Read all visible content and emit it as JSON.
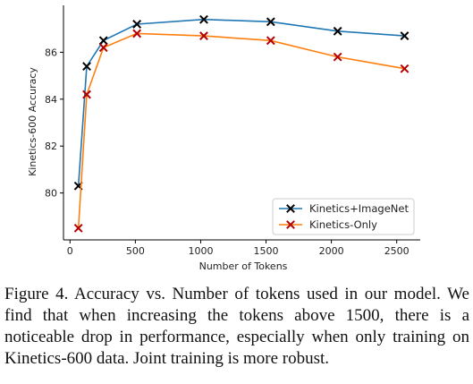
{
  "chart_data": {
    "type": "line",
    "xlabel": "Number of Tokens",
    "ylabel": "Kinetics-600 Accuracy",
    "xlim": [
      -50,
      2680
    ],
    "ylim": [
      78,
      88
    ],
    "xticks": [
      0,
      500,
      1000,
      1500,
      2000,
      2500
    ],
    "yticks": [
      80,
      82,
      84,
      86
    ],
    "xtick_labels": [
      "0",
      "500",
      "1000",
      "1500",
      "2000",
      "2500"
    ],
    "ytick_labels": [
      "80",
      "82",
      "84",
      "86"
    ],
    "grid": false,
    "legend_position": "lower-right",
    "series": [
      {
        "name": "Kinetics+ImageNet",
        "color": "#1f77b4",
        "marker_color": "#000000",
        "x": [
          64,
          128,
          256,
          512,
          1024,
          1536,
          2048,
          2560
        ],
        "y": [
          80.3,
          85.4,
          86.5,
          87.2,
          87.4,
          87.3,
          86.9,
          86.7
        ]
      },
      {
        "name": "Kinetics-Only",
        "color": "#ff7f0e",
        "marker_color": "#b30000",
        "x": [
          64,
          128,
          256,
          512,
          1024,
          1536,
          2048,
          2560
        ],
        "y": [
          78.5,
          84.2,
          86.2,
          86.8,
          86.7,
          86.5,
          85.8,
          85.3
        ]
      }
    ]
  },
  "caption": "Figure 4.  Accuracy vs.  Number of tokens used in our model. We find that when increasing the tokens above 1500, there is a noticeable drop in performance, especially when only training on Kinetics-600 data. Joint training is more robust."
}
